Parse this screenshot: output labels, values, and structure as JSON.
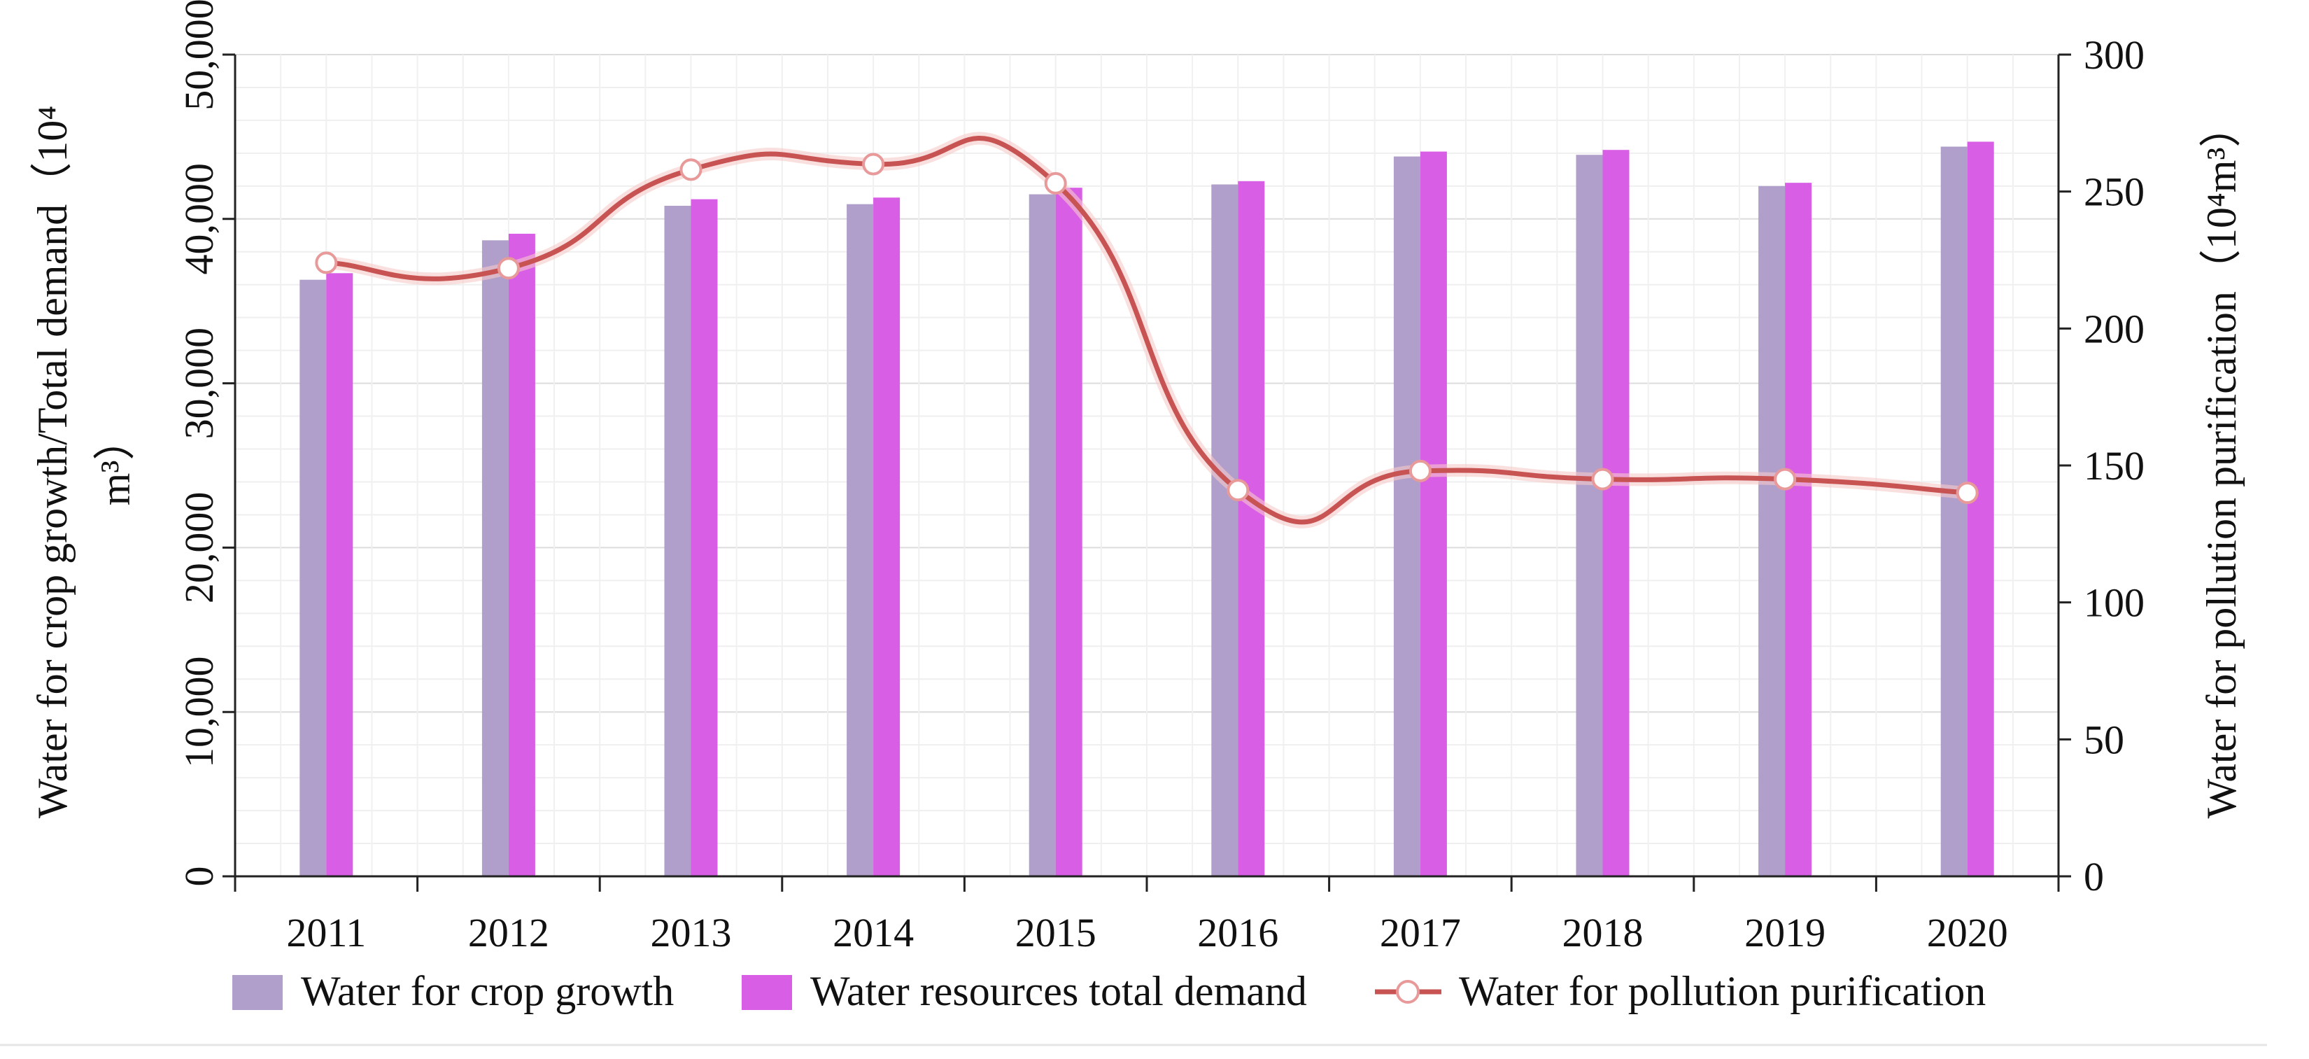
{
  "chart_data": {
    "type": "bar+line",
    "categories": [
      "2011",
      "2012",
      "2013",
      "2014",
      "2015",
      "2016",
      "2017",
      "2018",
      "2019",
      "2020"
    ],
    "series": [
      {
        "name": "Water for crop growth",
        "kind": "bar",
        "axis": "left",
        "color": "#b09fca",
        "values": [
          36300,
          38700,
          40800,
          40900,
          41500,
          42100,
          43800,
          43900,
          42000,
          44400
        ]
      },
      {
        "name": "Water resources total demand",
        "kind": "bar",
        "axis": "left",
        "color": "#d95ee6",
        "values": [
          36700,
          39100,
          41200,
          41300,
          41900,
          42300,
          44100,
          44200,
          42200,
          44700
        ]
      },
      {
        "name": "Water for pollution purification",
        "kind": "line",
        "axis": "right",
        "color": "#c85353",
        "values": [
          224,
          222,
          258,
          260,
          253,
          141,
          148,
          145,
          145,
          140
        ]
      }
    ],
    "y_left": {
      "label_line1": "Water for crop growth/Total demand（10⁴",
      "label_line2": "m³）",
      "range": [
        0,
        50000
      ],
      "ticks": [
        "0",
        "10,000",
        "20,000",
        "30,000",
        "40,000",
        "50,000"
      ]
    },
    "y_right": {
      "label": "Water for pollution purification（10⁴m³）",
      "range": [
        0,
        300
      ],
      "ticks": [
        "0",
        "50",
        "100",
        "150",
        "200",
        "250",
        "300"
      ]
    },
    "grid": true,
    "legend_position": "bottom"
  }
}
